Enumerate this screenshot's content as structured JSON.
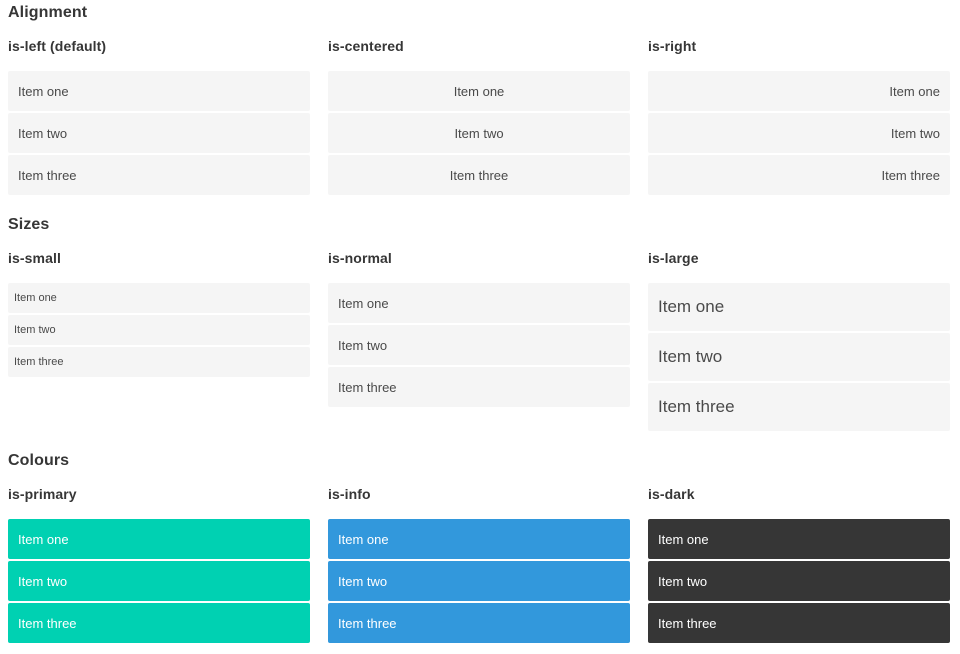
{
  "sections": [
    {
      "title": "Alignment",
      "blocks": [
        {
          "label": "is-left (default)",
          "items": [
            "Item one",
            "Item two",
            "Item three"
          ]
        },
        {
          "label": "is-centered",
          "items": [
            "Item one",
            "Item two",
            "Item three"
          ]
        },
        {
          "label": "is-right",
          "items": [
            "Item one",
            "Item two",
            "Item three"
          ]
        }
      ]
    },
    {
      "title": "Sizes",
      "blocks": [
        {
          "label": "is-small",
          "items": [
            "Item one",
            "Item two",
            "Item three"
          ]
        },
        {
          "label": "is-normal",
          "items": [
            "Item one",
            "Item two",
            "Item three"
          ]
        },
        {
          "label": "is-large",
          "items": [
            "Item one",
            "Item two",
            "Item three"
          ]
        }
      ]
    },
    {
      "title": "Colours",
      "blocks": [
        {
          "label": "is-primary",
          "items": [
            "Item one",
            "Item two",
            "Item three"
          ]
        },
        {
          "label": "is-info",
          "items": [
            "Item one",
            "Item two",
            "Item three"
          ]
        },
        {
          "label": "is-dark",
          "items": [
            "Item one",
            "Item two",
            "Item three"
          ]
        }
      ]
    }
  ],
  "colors": {
    "primary": "#00d1b2",
    "info": "#3298dc",
    "dark": "#363636",
    "item_bg": "#f5f5f5",
    "item_text": "#4a4a4a",
    "item_text_on_color": "#ffffff",
    "heading_text": "#363636",
    "page_bg": "#ffffff"
  }
}
